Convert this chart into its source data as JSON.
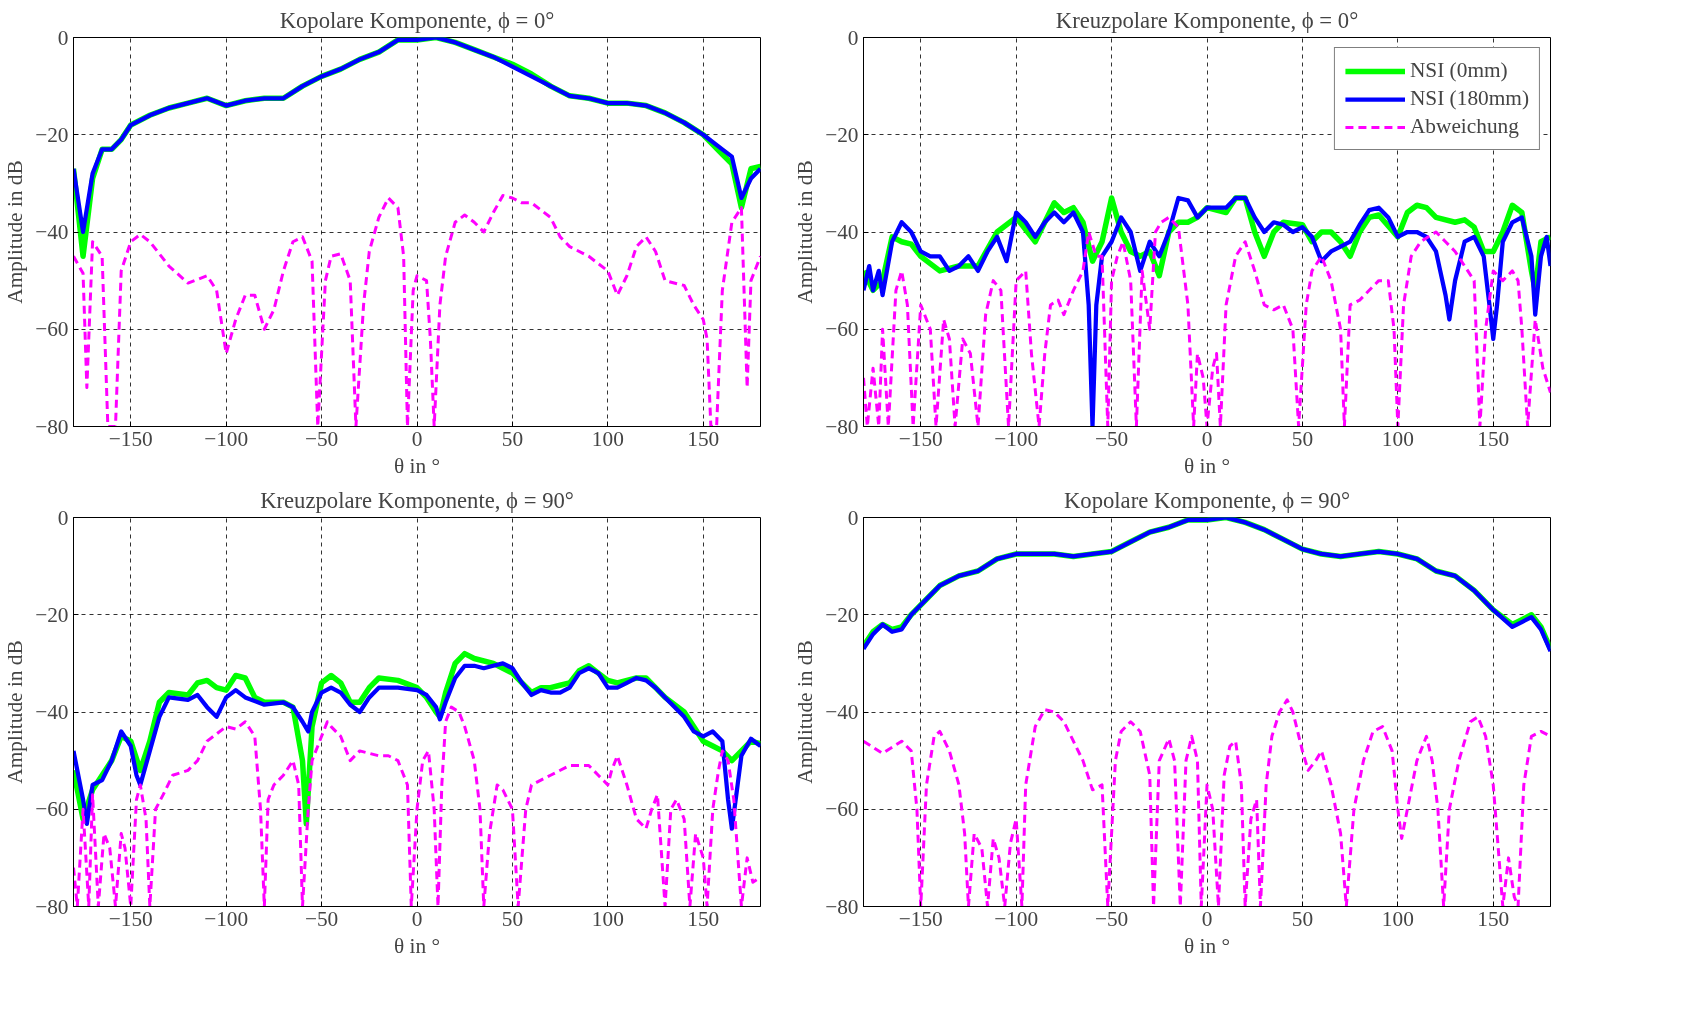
{
  "chart_data": [
    {
      "type": "line",
      "title": "Kopolare Komponente, ϕ = 0°",
      "xlabel": "θ in °",
      "ylabel": "Amplitude in dB",
      "xlim": [
        -180,
        180
      ],
      "ylim": [
        -80,
        0
      ],
      "xticks": [
        -150,
        -100,
        -50,
        0,
        50,
        100,
        150
      ],
      "yticks": [
        -80,
        -60,
        -40,
        -20,
        0
      ],
      "grid": true,
      "series": [
        {
          "color": "#00ff00",
          "line_style": "solid",
          "x": [
            -180,
            -175,
            -170,
            -165,
            -160,
            -155,
            -150,
            -140,
            -130,
            -120,
            -110,
            -100,
            -90,
            -80,
            -70,
            -60,
            -50,
            -40,
            -30,
            -20,
            -10,
            0,
            10,
            20,
            30,
            40,
            50,
            60,
            70,
            80,
            90,
            100,
            110,
            120,
            130,
            140,
            150,
            160,
            165,
            170,
            175,
            180
          ],
          "values": [
            -27,
            -45,
            -29,
            -23,
            -23,
            -21,
            -18,
            -16,
            -14.5,
            -13.5,
            -12.5,
            -14,
            -13,
            -12.5,
            -12.5,
            -10,
            -8,
            -6.5,
            -4.5,
            -3,
            -0.5,
            -0.5,
            0,
            -1,
            -2.5,
            -4,
            -5.5,
            -7.5,
            -10,
            -12,
            -12.5,
            -13.5,
            -13.5,
            -14,
            -15.5,
            -17.5,
            -20,
            -24,
            -26,
            -35,
            -27,
            -26.5
          ]
        },
        {
          "color": "#0000ff",
          "line_style": "solid",
          "x": [
            -180,
            -175,
            -170,
            -165,
            -160,
            -155,
            -150,
            -140,
            -130,
            -120,
            -110,
            -100,
            -90,
            -80,
            -70,
            -60,
            -50,
            -40,
            -30,
            -20,
            -10,
            0,
            10,
            20,
            30,
            40,
            50,
            60,
            70,
            80,
            90,
            100,
            110,
            120,
            130,
            140,
            150,
            160,
            165,
            170,
            175,
            180
          ],
          "values": [
            -27,
            -40,
            -28,
            -23,
            -23,
            -21,
            -18,
            -16,
            -14.5,
            -13.5,
            -12.5,
            -14,
            -13,
            -12.5,
            -12.5,
            -10,
            -8,
            -6.5,
            -4.5,
            -3,
            -0.5,
            -0.5,
            0,
            -1,
            -2.5,
            -4,
            -6,
            -8,
            -10,
            -12,
            -12.5,
            -13.5,
            -13.5,
            -14,
            -15.5,
            -17.5,
            -20,
            -23,
            -24.5,
            -33,
            -29,
            -27
          ]
        },
        {
          "color": "#ff00ff",
          "line_style": "dashed",
          "x": [
            -180,
            -175,
            -173,
            -170,
            -165,
            -162,
            -158,
            -155,
            -150,
            -145,
            -140,
            -130,
            -120,
            -110,
            -105,
            -100,
            -95,
            -90,
            -85,
            -80,
            -75,
            -70,
            -65,
            -60,
            -55,
            -52,
            -48,
            -45,
            -40,
            -35,
            -32,
            -28,
            -25,
            -20,
            -15,
            -10,
            -7,
            -5,
            -2,
            0,
            5,
            7,
            9,
            12,
            15,
            20,
            25,
            30,
            35,
            40,
            45,
            50,
            55,
            60,
            70,
            75,
            80,
            90,
            100,
            105,
            110,
            115,
            120,
            125,
            130,
            140,
            145,
            150,
            152,
            154,
            157,
            160,
            165,
            170,
            173,
            175,
            180
          ],
          "values": [
            -45,
            -48.5,
            -72,
            -42,
            -45,
            -80,
            -80,
            -48,
            -42,
            -40.5,
            -42,
            -47,
            -50.5,
            -49,
            -52,
            -65,
            -58,
            -53,
            -53,
            -60,
            -56,
            -48,
            -42,
            -41,
            -46,
            -80,
            -50,
            -45,
            -44.5,
            -50,
            -80,
            -55,
            -44,
            -37,
            -33,
            -35,
            -45,
            -80,
            -52,
            -49,
            -50,
            -62,
            -80,
            -55,
            -45,
            -38,
            -36.5,
            -38,
            -40,
            -36,
            -32.5,
            -33,
            -34,
            -34,
            -37,
            -41,
            -43,
            -45,
            -48,
            -53,
            -49,
            -43,
            -41,
            -44,
            -50,
            -51,
            -55,
            -58,
            -62,
            -80,
            -80,
            -52,
            -38,
            -35,
            -72,
            -50,
            -45
          ]
        }
      ]
    },
    {
      "type": "line",
      "title": "Kreuzpolare Komponente, ϕ = 0°",
      "xlabel": "θ in °",
      "ylabel": "Amplitude in dB",
      "xlim": [
        -180,
        180
      ],
      "ylim": [
        -80,
        0
      ],
      "xticks": [
        -150,
        -100,
        -50,
        0,
        50,
        100,
        150
      ],
      "yticks": [
        -80,
        -60,
        -40,
        -20,
        0
      ],
      "grid": true,
      "legend": "top right",
      "series": [
        {
          "name": "NSI (0mm)",
          "color": "#00ff00",
          "line_style": "solid",
          "x": [
            -180,
            -175,
            -170,
            -165,
            -160,
            -155,
            -150,
            -140,
            -130,
            -120,
            -110,
            -100,
            -90,
            -80,
            -75,
            -70,
            -65,
            -60,
            -55,
            -50,
            -45,
            -40,
            -35,
            -30,
            -25,
            -20,
            -15,
            -10,
            -5,
            0,
            5,
            10,
            15,
            20,
            25,
            30,
            35,
            40,
            50,
            55,
            60,
            65,
            70,
            75,
            80,
            85,
            90,
            100,
            105,
            110,
            115,
            120,
            130,
            135,
            140,
            145,
            150,
            155,
            160,
            165,
            170,
            172,
            175,
            180
          ],
          "values": [
            -48,
            -52,
            -50,
            -41,
            -42,
            -42.5,
            -45,
            -48,
            -47,
            -47,
            -40,
            -37,
            -42,
            -34,
            -36,
            -35,
            -38,
            -46,
            -42,
            -33,
            -40,
            -44,
            -45,
            -44,
            -49,
            -40,
            -38,
            -38,
            -37,
            -35,
            -35.5,
            -36,
            -33,
            -33,
            -40,
            -45,
            -40,
            -38,
            -38.5,
            -42,
            -40,
            -40,
            -42,
            -45,
            -40,
            -37,
            -36.5,
            -41,
            -36,
            -34.5,
            -35,
            -37,
            -38,
            -37.5,
            -39,
            -44,
            -44,
            -40,
            -34.5,
            -36,
            -48,
            -52,
            -42,
            -41
          ]
        },
        {
          "name": "NSI (180mm)",
          "color": "#0000ff",
          "line_style": "solid",
          "x": [
            -180,
            -177,
            -175,
            -172,
            -170,
            -165,
            -160,
            -155,
            -150,
            -145,
            -140,
            -135,
            -130,
            -125,
            -120,
            -115,
            -110,
            -105,
            -100,
            -95,
            -90,
            -85,
            -80,
            -75,
            -70,
            -65,
            -62,
            -60,
            -58,
            -55,
            -50,
            -45,
            -40,
            -35,
            -30,
            -25,
            -20,
            -15,
            -10,
            -5,
            0,
            5,
            10,
            15,
            20,
            25,
            30,
            35,
            40,
            45,
            50,
            55,
            60,
            65,
            70,
            75,
            80,
            85,
            90,
            95,
            100,
            105,
            110,
            115,
            120,
            125,
            127,
            130,
            135,
            140,
            145,
            148,
            150,
            152,
            155,
            160,
            165,
            170,
            172,
            175,
            178,
            180
          ],
          "values": [
            -52,
            -47,
            -52,
            -48,
            -53,
            -42,
            -38,
            -40,
            -44,
            -45,
            -45,
            -48,
            -47,
            -45,
            -48,
            -44,
            -41,
            -46,
            -36,
            -38,
            -41,
            -38,
            -36,
            -38,
            -36,
            -40,
            -55,
            -80,
            -55,
            -45,
            -42,
            -37,
            -40,
            -48,
            -42,
            -45,
            -40,
            -33,
            -33.5,
            -37,
            -35,
            -35,
            -35,
            -33,
            -33,
            -37,
            -40,
            -38,
            -38.5,
            -40,
            -39,
            -41,
            -46,
            -44,
            -43,
            -42,
            -38.5,
            -35.5,
            -35,
            -37,
            -41,
            -40,
            -40,
            -41,
            -44,
            -53,
            -58,
            -50,
            -42,
            -41,
            -45,
            -55,
            -62,
            -55,
            -42,
            -38,
            -37,
            -45,
            -57,
            -45,
            -41,
            -47
          ]
        },
        {
          "name": "Abweichung",
          "color": "#ff00ff",
          "line_style": "dashed",
          "x": [
            -180,
            -178,
            -175,
            -172,
            -170,
            -167,
            -163,
            -160,
            -157,
            -154,
            -150,
            -145,
            -142,
            -138,
            -135,
            -132,
            -128,
            -124,
            -120,
            -116,
            -112,
            -108,
            -104,
            -100,
            -95,
            -92,
            -88,
            -85,
            -82,
            -78,
            -75,
            -70,
            -65,
            -62,
            -58,
            -55,
            -52,
            -50,
            -47,
            -44,
            -40,
            -37,
            -34,
            -30,
            -27,
            -24,
            -20,
            -15,
            -10,
            -7,
            -5,
            -2,
            0,
            3,
            5,
            7,
            10,
            15,
            20,
            25,
            30,
            35,
            40,
            45,
            48,
            52,
            55,
            60,
            65,
            70,
            72,
            75,
            80,
            90,
            95,
            98,
            100,
            103,
            107,
            112,
            120,
            125,
            130,
            135,
            140,
            143,
            146,
            150,
            155,
            160,
            163,
            165,
            168,
            172,
            176,
            180
          ],
          "values": [
            -70,
            -80,
            -68,
            -80,
            -60,
            -80,
            -52,
            -48,
            -55,
            -80,
            -55,
            -60,
            -80,
            -58,
            -62,
            -80,
            -62,
            -65,
            -80,
            -57,
            -50,
            -52,
            -80,
            -50,
            -48,
            -65,
            -80,
            -65,
            -55,
            -54,
            -57,
            -52,
            -48,
            -40,
            -45,
            -45,
            -80,
            -50,
            -45,
            -42,
            -50,
            -80,
            -48,
            -60,
            -40,
            -38,
            -37,
            -39,
            -55,
            -80,
            -65,
            -70,
            -80,
            -68,
            -65,
            -80,
            -55,
            -45,
            -42,
            -48,
            -55,
            -56,
            -55,
            -60,
            -80,
            -55,
            -48,
            -45,
            -50,
            -60,
            -80,
            -55,
            -54,
            -50,
            -50,
            -60,
            -80,
            -55,
            -45,
            -42,
            -40,
            -42,
            -44,
            -47,
            -50,
            -80,
            -60,
            -48,
            -50,
            -48,
            -50,
            -60,
            -80,
            -58,
            -68,
            -73
          ]
        }
      ]
    },
    {
      "type": "line",
      "title": "Kreuzpolare Komponente, ϕ = 90°",
      "xlabel": "θ in °",
      "ylabel": "Amplitude in dB",
      "xlim": [
        -180,
        180
      ],
      "ylim": [
        -80,
        0
      ],
      "xticks": [
        -150,
        -100,
        -50,
        0,
        50,
        100,
        150
      ],
      "yticks": [
        -80,
        -60,
        -40,
        -20,
        0
      ],
      "grid": true,
      "series": [
        {
          "color": "#00ff00",
          "line_style": "solid",
          "x": [
            -180,
            -175,
            -170,
            -165,
            -160,
            -155,
            -150,
            -145,
            -140,
            -135,
            -130,
            -120,
            -115,
            -110,
            -105,
            -100,
            -95,
            -90,
            -85,
            -80,
            -70,
            -65,
            -60,
            -58,
            -55,
            -50,
            -45,
            -40,
            -35,
            -30,
            -25,
            -20,
            -10,
            0,
            5,
            10,
            12,
            15,
            20,
            25,
            30,
            40,
            45,
            50,
            55,
            60,
            65,
            70,
            75,
            80,
            85,
            90,
            95,
            100,
            105,
            110,
            115,
            120,
            125,
            130,
            140,
            145,
            150,
            155,
            160,
            165,
            170,
            175,
            180
          ],
          "values": [
            -52,
            -62,
            -56,
            -53,
            -50,
            -45,
            -46,
            -52,
            -46,
            -38,
            -36,
            -36.5,
            -34,
            -33.5,
            -35,
            -35.5,
            -32.5,
            -33,
            -37,
            -38,
            -38,
            -39,
            -50,
            -63,
            -43,
            -34,
            -32.5,
            -34,
            -38,
            -38,
            -35,
            -33,
            -33.5,
            -35,
            -37,
            -40,
            -41,
            -36,
            -30,
            -28,
            -29,
            -30,
            -31,
            -32,
            -34,
            -36,
            -35,
            -35,
            -34.5,
            -34,
            -31.5,
            -30.5,
            -32,
            -33.5,
            -34,
            -33.5,
            -33,
            -33,
            -35,
            -37,
            -40,
            -43,
            -46,
            -47,
            -48,
            -50,
            -48,
            -46,
            -46.5
          ]
        },
        {
          "color": "#0000ff",
          "line_style": "solid",
          "x": [
            -180,
            -175,
            -173,
            -170,
            -165,
            -160,
            -155,
            -150,
            -147,
            -145,
            -140,
            -135,
            -130,
            -120,
            -115,
            -110,
            -105,
            -100,
            -95,
            -90,
            -80,
            -70,
            -65,
            -60,
            -57,
            -55,
            -50,
            -45,
            -40,
            -35,
            -30,
            -25,
            -20,
            -10,
            0,
            5,
            10,
            12,
            15,
            20,
            25,
            30,
            35,
            40,
            45,
            50,
            55,
            60,
            65,
            70,
            75,
            80,
            85,
            90,
            95,
            100,
            105,
            110,
            115,
            120,
            125,
            130,
            140,
            145,
            150,
            155,
            160,
            163,
            165,
            168,
            170,
            175,
            180
          ],
          "values": [
            -48,
            -58,
            -63,
            -55,
            -54,
            -50,
            -44,
            -47,
            -53,
            -55,
            -48,
            -41,
            -37,
            -37.5,
            -36.5,
            -39,
            -41,
            -37,
            -35.5,
            -37,
            -38.5,
            -38,
            -39,
            -42,
            -44,
            -40,
            -36,
            -35,
            -36,
            -38.5,
            -40,
            -37,
            -35,
            -35,
            -35.5,
            -36.5,
            -39,
            -41.5,
            -38,
            -33,
            -30.5,
            -30.5,
            -31,
            -30.5,
            -30,
            -31,
            -34,
            -36.5,
            -35.5,
            -36,
            -36,
            -35,
            -32,
            -31,
            -32,
            -35,
            -35,
            -34,
            -33,
            -33.5,
            -35,
            -37,
            -41,
            -44,
            -45,
            -44,
            -46,
            -58,
            -64,
            -55,
            -49,
            -45.5,
            -47
          ]
        },
        {
          "color": "#ff00ff",
          "line_style": "dashed",
          "x": [
            -180,
            -178,
            -175,
            -172,
            -170,
            -167,
            -164,
            -161,
            -158,
            -155,
            -153,
            -150,
            -147,
            -145,
            -142,
            -140,
            -137,
            -133,
            -128,
            -120,
            -115,
            -110,
            -100,
            -95,
            -90,
            -85,
            -82,
            -80,
            -78,
            -75,
            -70,
            -65,
            -62,
            -60,
            -57,
            -55,
            -50,
            -47,
            -45,
            -40,
            -35,
            -30,
            -25,
            -20,
            -15,
            -10,
            -5,
            -3,
            0,
            3,
            6,
            9,
            11,
            13,
            15,
            18,
            22,
            25,
            30,
            33,
            35,
            38,
            42,
            45,
            50,
            53,
            57,
            60,
            70,
            80,
            90,
            95,
            100,
            102,
            105,
            110,
            115,
            120,
            123,
            126,
            130,
            133,
            136,
            140,
            143,
            146,
            150,
            152,
            155,
            158,
            160,
            163,
            166,
            170,
            173,
            176,
            180
          ],
          "values": [
            -72,
            -80,
            -60,
            -80,
            -57,
            -80,
            -65,
            -68,
            -80,
            -65,
            -68,
            -80,
            -58,
            -55,
            -62,
            -80,
            -60,
            -57,
            -53,
            -52,
            -50,
            -46,
            -43,
            -43.5,
            -42,
            -45,
            -60,
            -80,
            -58,
            -55,
            -53,
            -50,
            -55,
            -80,
            -60,
            -50,
            -45,
            -42,
            -43,
            -45,
            -50,
            -48,
            -48.5,
            -49,
            -49,
            -50,
            -55,
            -80,
            -60,
            -50,
            -48,
            -60,
            -80,
            -55,
            -42,
            -39,
            -40,
            -43,
            -50,
            -60,
            -80,
            -65,
            -55,
            -56,
            -60,
            -80,
            -60,
            -55,
            -53,
            -51,
            -51,
            -53,
            -55,
            -52,
            -49,
            -55,
            -62,
            -64,
            -60,
            -57,
            -80,
            -60,
            -58,
            -62,
            -80,
            -65,
            -70,
            -80,
            -60,
            -52,
            -48,
            -50,
            -58,
            -80,
            -70,
            -75,
            -74
          ]
        }
      ]
    },
    {
      "type": "line",
      "title": "Kopolare Komponente, ϕ = 90°",
      "xlabel": "θ in °",
      "ylabel": "Amplitude in dB",
      "xlim": [
        -180,
        180
      ],
      "ylim": [
        -80,
        0
      ],
      "xticks": [
        -150,
        -100,
        -50,
        0,
        50,
        100,
        150
      ],
      "yticks": [
        -80,
        -60,
        -40,
        -20,
        0
      ],
      "grid": true,
      "series": [
        {
          "color": "#00ff00",
          "line_style": "solid",
          "x": [
            -180,
            -175,
            -170,
            -165,
            -160,
            -155,
            -150,
            -140,
            -130,
            -120,
            -110,
            -100,
            -90,
            -80,
            -70,
            -60,
            -50,
            -40,
            -30,
            -20,
            -10,
            0,
            10,
            20,
            30,
            40,
            50,
            60,
            70,
            80,
            90,
            100,
            110,
            120,
            130,
            140,
            150,
            160,
            165,
            170,
            175,
            180
          ],
          "values": [
            -26.5,
            -23.5,
            -22,
            -23,
            -22.5,
            -20,
            -18,
            -14,
            -12,
            -11,
            -8.5,
            -7.5,
            -7.5,
            -7.5,
            -8,
            -7.5,
            -7,
            -5,
            -3,
            -2,
            -0.5,
            -0.5,
            0,
            -1,
            -2.5,
            -4.5,
            -6.5,
            -7.5,
            -8,
            -7.5,
            -7,
            -7.5,
            -8.5,
            -11,
            -12,
            -15,
            -19,
            -22,
            -21,
            -20,
            -22.5,
            -27
          ]
        },
        {
          "color": "#0000ff",
          "line_style": "solid",
          "x": [
            -180,
            -175,
            -170,
            -165,
            -160,
            -155,
            -150,
            -140,
            -130,
            -120,
            -110,
            -100,
            -90,
            -80,
            -70,
            -60,
            -50,
            -40,
            -30,
            -20,
            -10,
            0,
            10,
            20,
            30,
            40,
            50,
            60,
            70,
            80,
            90,
            100,
            110,
            120,
            130,
            140,
            150,
            160,
            165,
            170,
            175,
            180
          ],
          "values": [
            -27,
            -24,
            -22,
            -23.5,
            -23,
            -20,
            -18,
            -14,
            -12,
            -11,
            -8.5,
            -7.5,
            -7.5,
            -7.5,
            -8,
            -7.5,
            -7,
            -5,
            -3,
            -2,
            -0.5,
            -0.5,
            0,
            -1,
            -2.5,
            -4.5,
            -6.5,
            -7.5,
            -8,
            -7.5,
            -7,
            -7.5,
            -8.5,
            -11,
            -12,
            -15,
            -19,
            -22.5,
            -21.5,
            -20.5,
            -23,
            -27.5
          ]
        },
        {
          "color": "#ff00ff",
          "line_style": "dashed",
          "x": [
            -180,
            -170,
            -160,
            -155,
            -152,
            -150,
            -147,
            -143,
            -140,
            -135,
            -130,
            -127,
            -125,
            -122,
            -118,
            -115,
            -112,
            -109,
            -106,
            -103,
            -100,
            -97,
            -95,
            -90,
            -85,
            -80,
            -75,
            -70,
            -65,
            -60,
            -55,
            -52,
            -48,
            -45,
            -40,
            -35,
            -30,
            -28,
            -25,
            -20,
            -17,
            -14,
            -11,
            -8,
            -5,
            -3,
            0,
            3,
            6,
            9,
            12,
            15,
            18,
            20,
            23,
            26,
            28,
            31,
            34,
            38,
            42,
            45,
            50,
            53,
            57,
            60,
            65,
            70,
            73,
            77,
            82,
            87,
            92,
            97,
            100,
            102,
            105,
            110,
            115,
            118,
            121,
            124,
            127,
            132,
            138,
            142,
            146,
            150,
            153,
            155,
            158,
            161,
            163,
            166,
            170,
            175,
            180
          ],
          "values": [
            -46,
            -48.5,
            -46,
            -48,
            -60,
            -80,
            -55,
            -45,
            -44,
            -48,
            -55,
            -65,
            -80,
            -65,
            -68,
            -80,
            -66,
            -70,
            -80,
            -67,
            -62,
            -80,
            -55,
            -43,
            -39.5,
            -40,
            -42,
            -46,
            -50,
            -56,
            -55,
            -80,
            -50,
            -44,
            -42,
            -44,
            -53,
            -80,
            -50,
            -45.5,
            -50,
            -80,
            -50,
            -45,
            -50,
            -80,
            -55,
            -60,
            -80,
            -53,
            -47,
            -46,
            -55,
            -80,
            -62,
            -58,
            -80,
            -55,
            -45,
            -40,
            -37.5,
            -40,
            -48,
            -52,
            -50,
            -48,
            -55,
            -65,
            -80,
            -60,
            -50,
            -44,
            -43,
            -48,
            -60,
            -66,
            -60,
            -50,
            -45,
            -50,
            -60,
            -80,
            -60,
            -50,
            -42,
            -41,
            -45,
            -55,
            -70,
            -80,
            -70,
            -78,
            -80,
            -55,
            -45,
            -44,
            -45
          ]
        }
      ]
    }
  ]
}
